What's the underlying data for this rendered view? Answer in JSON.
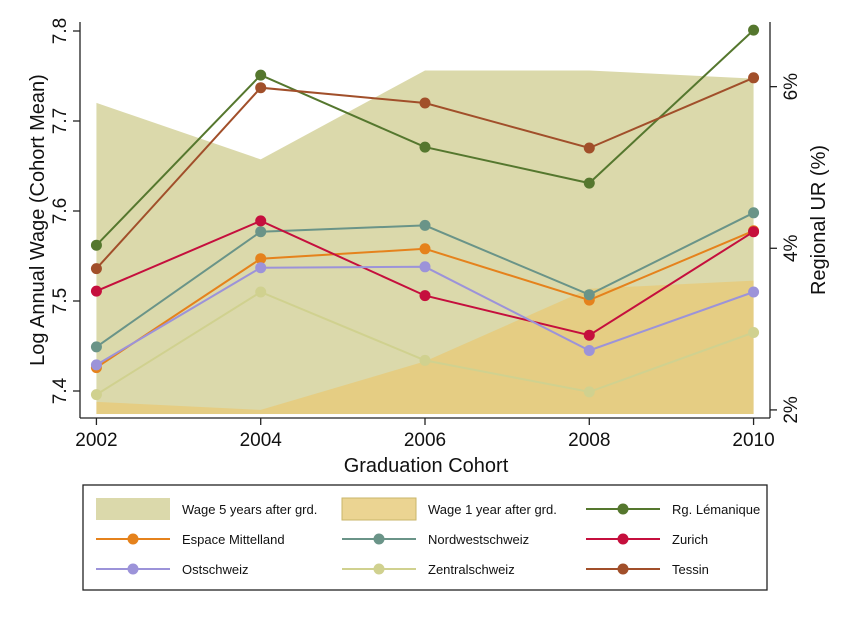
{
  "chart_data": {
    "type": "line",
    "x": [
      2002,
      2004,
      2006,
      2008,
      2010
    ],
    "xlabel": "Graduation Cohort",
    "ylabel": "Log Annual Wage (Cohort Mean)",
    "y2label": "Regional UR (%)",
    "ylim": [
      7.37,
      7.81
    ],
    "y2lim": [
      1.9,
      6.8
    ],
    "yticks": [
      7.4,
      7.5,
      7.6,
      7.7,
      7.8
    ],
    "y2ticks": [
      2,
      4,
      6
    ],
    "y2tick_labels": [
      "2%",
      "4%",
      "6%"
    ],
    "grid": false,
    "legend_position": "bottom",
    "areas": [
      {
        "name": "Wage 5 years after grd.",
        "axis": "right",
        "color": "#d8d6a4",
        "values": [
          5.8,
          5.1,
          6.2,
          6.2,
          6.1
        ]
      },
      {
        "name": "Wage 1 year after grd.",
        "axis": "right",
        "color": "#e6ca7a",
        "values": [
          2.1,
          2.0,
          2.6,
          3.5,
          3.6
        ]
      }
    ],
    "series": [
      {
        "name": "Rg. Lémanique",
        "color": "#55772e",
        "values": [
          7.562,
          7.751,
          7.671,
          7.631,
          7.801
        ]
      },
      {
        "name": "Espace Mittelland",
        "color": "#e5821c",
        "values": [
          7.426,
          7.547,
          7.558,
          7.501,
          7.578
        ]
      },
      {
        "name": "Nordwestschweiz",
        "color": "#6a9488",
        "values": [
          7.449,
          7.577,
          7.584,
          7.507,
          7.598
        ]
      },
      {
        "name": "Zurich",
        "color": "#c50f3d",
        "values": [
          7.511,
          7.589,
          7.506,
          7.462,
          7.577
        ]
      },
      {
        "name": "Ostschweiz",
        "color": "#9c93d9",
        "values": [
          7.429,
          7.537,
          7.538,
          7.445,
          7.51
        ]
      },
      {
        "name": "Zentralschweiz",
        "color": "#d0d18f",
        "values": [
          7.396,
          7.51,
          7.434,
          7.399,
          7.465
        ]
      },
      {
        "name": "Tessin",
        "color": "#a14f2a",
        "values": [
          7.536,
          7.737,
          7.72,
          7.67,
          7.748
        ]
      }
    ],
    "legend_order": [
      "Wage 5 years after grd.",
      "Wage 1 year after grd.",
      "Rg. Lémanique",
      "Espace Mittelland",
      "Nordwestschweiz",
      "Zurich",
      "Ostschweiz",
      "Zentralschweiz",
      "Tessin"
    ]
  }
}
